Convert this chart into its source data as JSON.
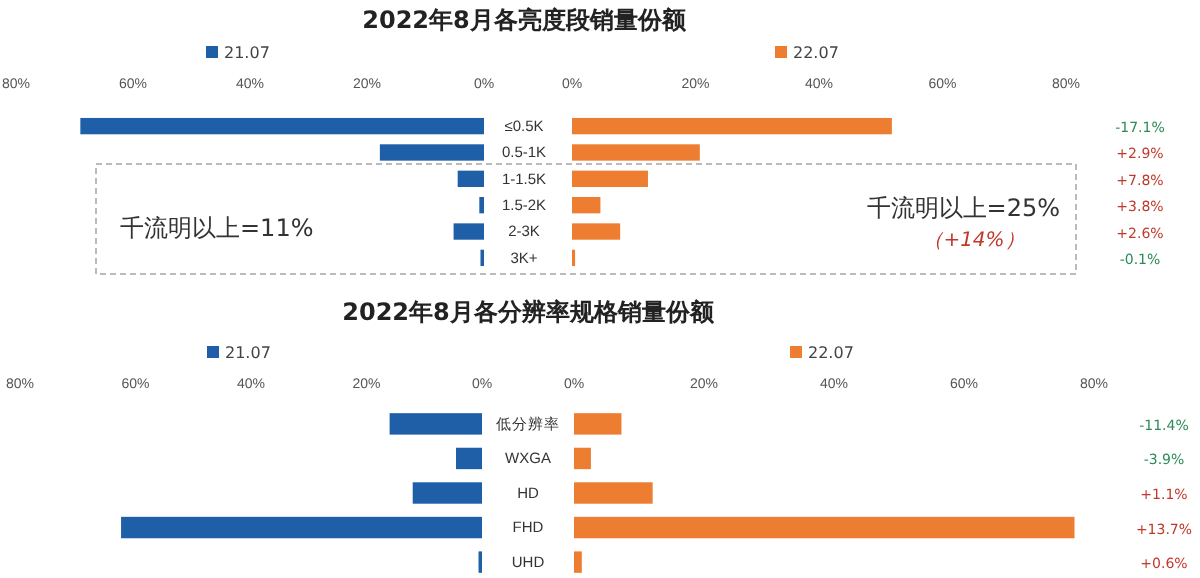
{
  "chart_data": [
    {
      "type": "bar",
      "orientation": "horizontal",
      "title": "2022年8月各亮度段销量份额",
      "categories": [
        "≤0.5K",
        "0.5-1K",
        "1-1.5K",
        "1.5-2K",
        "2-3K",
        "3K+"
      ],
      "series": [
        {
          "name": "21.07",
          "color": "#1f5fa8",
          "values": [
            69,
            17.8,
            4.5,
            0.8,
            5.2,
            0.6
          ]
        }
      ],
      "xlim": [
        80,
        0
      ],
      "xticks": [
        {
          "value": 80,
          "label": "80%"
        },
        {
          "value": 60,
          "label": "60%"
        },
        {
          "value": 40,
          "label": "40%"
        },
        {
          "value": 20,
          "label": "20%"
        },
        {
          "value": 0,
          "label": "0%"
        }
      ],
      "legend": "top",
      "annotations": [
        "千流明以上=11%"
      ]
    },
    {
      "type": "bar",
      "orientation": "horizontal",
      "categories": [
        null,
        null,
        null,
        null,
        null,
        null
      ],
      "series": [
        {
          "name": "22.07",
          "color": "#ed7d31",
          "values": [
            51.8,
            20.7,
            12.3,
            4.6,
            7.8,
            0.5
          ]
        }
      ],
      "xlim": [
        0,
        80
      ],
      "xticks": [
        {
          "value": 0,
          "label": "0%"
        },
        {
          "value": 20,
          "label": "20%"
        },
        {
          "value": 40,
          "label": "40%"
        },
        {
          "value": 60,
          "label": "60%"
        },
        {
          "value": 80,
          "label": "80%"
        }
      ],
      "legend": "top",
      "tick_labels": "x",
      "annotations": [
        "-17.1%",
        "+2.9%",
        "+7.8%",
        "+3.8%",
        "+2.6%",
        "-0.1%",
        "千流明以上=25%",
        "（+14%）"
      ]
    },
    {
      "type": "bar",
      "orientation": "horizontal",
      "title": "2022年8月各分辨率规格销量份额",
      "categories": [
        "低分辨率",
        "WXGA",
        "HD",
        "FHD",
        "UHD"
      ],
      "series": [
        {
          "name": "21.07",
          "color": "#1f5fa8",
          "values": [
            16,
            4.5,
            12,
            62.5,
            0.6
          ]
        }
      ],
      "xlim": [
        80,
        0
      ],
      "xticks": [
        {
          "value": 80,
          "label": "80%"
        },
        {
          "value": 60,
          "label": "60%"
        },
        {
          "value": 40,
          "label": "40%"
        },
        {
          "value": 20,
          "label": "20%"
        },
        {
          "value": 0,
          "label": "0%"
        }
      ],
      "legend": "top"
    },
    {
      "type": "bar",
      "orientation": "horizontal",
      "categories": [
        null,
        null,
        null,
        null,
        null
      ],
      "series": [
        {
          "name": "22.07",
          "color": "#ed7d31",
          "values": [
            7.3,
            2.6,
            12.1,
            77,
            1.2
          ]
        }
      ],
      "xlim": [
        0,
        80
      ],
      "xticks": [
        {
          "value": 0,
          "label": "0%"
        },
        {
          "value": 20,
          "label": "20%"
        },
        {
          "value": 40,
          "label": "40%"
        },
        {
          "value": 60,
          "label": "60%"
        },
        {
          "value": 80,
          "label": "80%"
        }
      ],
      "legend": "top",
      "tick_labels": "x",
      "annotations": [
        "-11.4%",
        "-3.9%",
        "+1.1%",
        "+13.7%",
        "+0.6%"
      ]
    }
  ]
}
